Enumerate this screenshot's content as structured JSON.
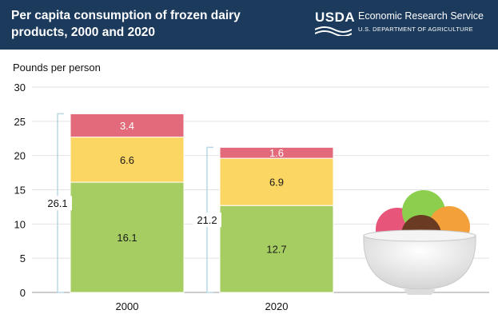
{
  "header": {
    "title": "Per capita consumption of frozen dairy products, 2000 and 2020",
    "logo_text": "USDA",
    "agency_name": "Economic Research Service",
    "department": "U.S. DEPARTMENT OF AGRICULTURE"
  },
  "colors": {
    "header_bg": "#1b3a5c",
    "bottom_segment": "#a5cd61",
    "middle_segment": "#fbd662",
    "top_segment": "#e26a7a",
    "bracket": "#b9d8e6"
  },
  "chart_data": {
    "type": "bar",
    "stacked": true,
    "ylabel": "Pounds per person",
    "ylim": [
      0,
      30
    ],
    "yticks": [
      0,
      5,
      10,
      15,
      20,
      25,
      30
    ],
    "grid": true,
    "categories": [
      "2000",
      "2020"
    ],
    "series": [
      {
        "values": [
          16.1,
          12.7
        ],
        "color": "#a5cd61"
      },
      {
        "values": [
          6.6,
          6.9
        ],
        "color": "#fbd662"
      },
      {
        "values": [
          3.4,
          1.6
        ],
        "color": "#e26a7a"
      }
    ],
    "totals": [
      "26.1",
      "21.2"
    ],
    "data_labels": [
      [
        "16.1",
        "12.7"
      ],
      [
        "6.6",
        "6.9"
      ],
      [
        "3.4",
        "1.6"
      ]
    ]
  }
}
